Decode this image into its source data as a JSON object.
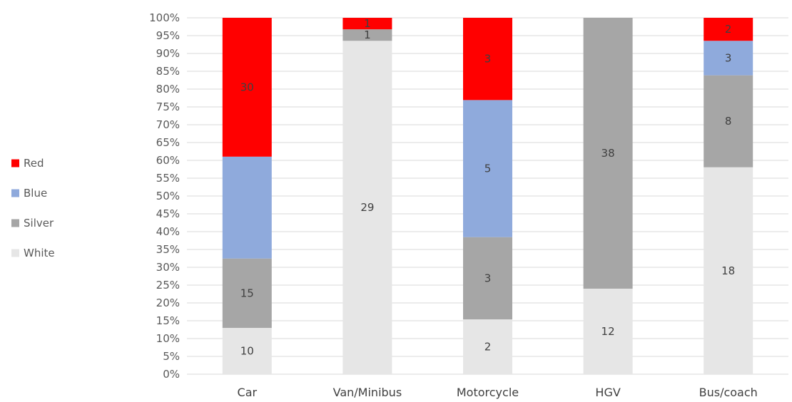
{
  "chart_data": {
    "type": "bar",
    "stacked": true,
    "percent_stacked": true,
    "categories": [
      "Car",
      "Van/Minibus",
      "Motorcycle",
      "HGV",
      "Bus/coach"
    ],
    "series": [
      {
        "name": "White",
        "color": "#e6e6e6",
        "values": [
          10,
          29,
          2,
          12,
          18
        ]
      },
      {
        "name": "Silver",
        "color": "#a6a6a6",
        "values": [
          15,
          1,
          3,
          38,
          8
        ]
      },
      {
        "name": "Blue",
        "color": "#8faadc",
        "values": [
          22,
          0,
          5,
          0,
          3
        ]
      },
      {
        "name": "Red",
        "color": "#ff0000",
        "values": [
          30,
          1,
          3,
          0,
          2
        ]
      }
    ],
    "y_ticks": [
      "0%",
      "5%",
      "10%",
      "15%",
      "20%",
      "25%",
      "30%",
      "35%",
      "40%",
      "45%",
      "50%",
      "55%",
      "60%",
      "65%",
      "70%",
      "75%",
      "80%",
      "85%",
      "90%",
      "95%",
      "100%"
    ],
    "ylim": [
      0,
      100
    ],
    "grid": true,
    "legend_position": "left",
    "legend_order": [
      "Red",
      "Blue",
      "Silver",
      "White"
    ],
    "segment_labels": [
      {
        "category": "Car",
        "series": "White",
        "text": "10"
      },
      {
        "category": "Car",
        "series": "Silver",
        "text": "15"
      },
      {
        "category": "Car",
        "series": "Red",
        "text": "30"
      },
      {
        "category": "Van/Minibus",
        "series": "White",
        "text": "29"
      },
      {
        "category": "Van/Minibus",
        "series": "Silver",
        "text": "1"
      },
      {
        "category": "Van/Minibus",
        "series": "Red",
        "text": "1"
      },
      {
        "category": "Motorcycle",
        "series": "White",
        "text": "2"
      },
      {
        "category": "Motorcycle",
        "series": "Silver",
        "text": "3"
      },
      {
        "category": "Motorcycle",
        "series": "Blue",
        "text": "5"
      },
      {
        "category": "Motorcycle",
        "series": "Red",
        "text": "3"
      },
      {
        "category": "HGV",
        "series": "White",
        "text": "12"
      },
      {
        "category": "HGV",
        "series": "Silver",
        "text": "38"
      },
      {
        "category": "Bus/coach",
        "series": "White",
        "text": "18"
      },
      {
        "category": "Bus/coach",
        "series": "Silver",
        "text": "8"
      },
      {
        "category": "Bus/coach",
        "series": "Blue",
        "text": "3"
      },
      {
        "category": "Bus/coach",
        "series": "Red",
        "text": "2"
      }
    ],
    "colors": {
      "grid": "#d9d9d9",
      "segment_label_text": "#404040",
      "axis_text": "#595959"
    }
  }
}
